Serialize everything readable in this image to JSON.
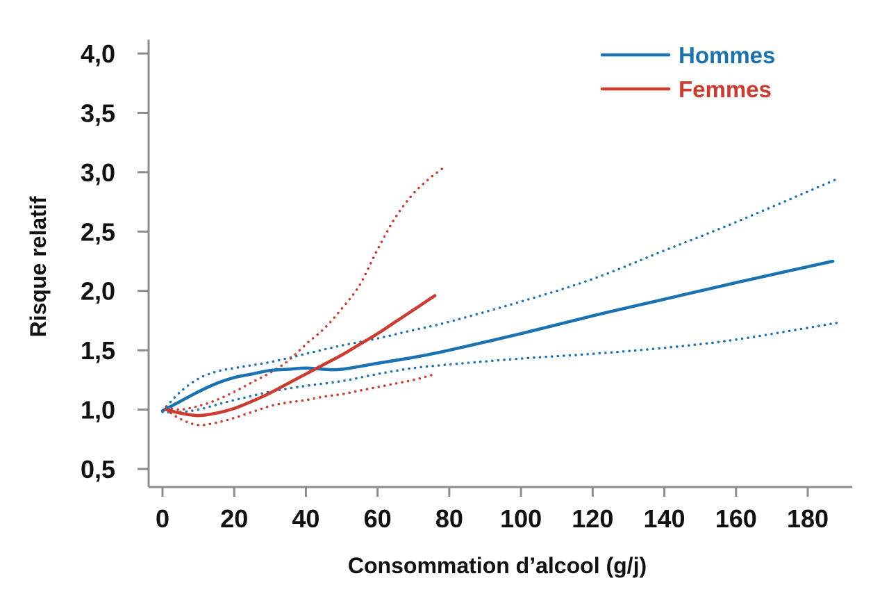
{
  "chart_data": {
    "type": "line",
    "title": "",
    "xlabel": "Consommation d’alcool (g/j)",
    "ylabel": "Risque relatif",
    "xlim": [
      0,
      190
    ],
    "ylim": [
      0.5,
      4.0
    ],
    "x_ticks": [
      "0",
      "20",
      "40",
      "60",
      "80",
      "100",
      "120",
      "140",
      "160",
      "180"
    ],
    "x_tick_values": [
      0,
      20,
      40,
      60,
      80,
      100,
      120,
      140,
      160,
      180
    ],
    "y_ticks": [
      "0,5",
      "1,0",
      "1,5",
      "2,0",
      "2,5",
      "3,0",
      "3,5",
      "4,0"
    ],
    "y_tick_values": [
      0.5,
      1.0,
      1.5,
      2.0,
      2.5,
      3.0,
      3.5,
      4.0
    ],
    "grid": false,
    "legend_position": "top-right",
    "colors": {
      "hommes": "#1a72b0",
      "femmes": "#cc3a30",
      "axis": "#8c8c8c"
    },
    "legend": [
      {
        "label": "Hommes",
        "color": "#1a72b0"
      },
      {
        "label": "Femmes",
        "color": "#cc3a30"
      }
    ],
    "series": [
      {
        "name": "Hommes",
        "group": "hommes",
        "style": "solid",
        "color": "#1a72b0",
        "points": [
          [
            0,
            0.99
          ],
          [
            5,
            1.07
          ],
          [
            10,
            1.15
          ],
          [
            15,
            1.22
          ],
          [
            20,
            1.27
          ],
          [
            25,
            1.3
          ],
          [
            30,
            1.33
          ],
          [
            35,
            1.34
          ],
          [
            40,
            1.35
          ],
          [
            45,
            1.34
          ],
          [
            50,
            1.34
          ],
          [
            60,
            1.39
          ],
          [
            70,
            1.44
          ],
          [
            80,
            1.5
          ],
          [
            100,
            1.64
          ],
          [
            120,
            1.79
          ],
          [
            140,
            1.93
          ],
          [
            160,
            2.07
          ],
          [
            187,
            2.25
          ]
        ]
      },
      {
        "name": "",
        "group": "hommes",
        "style": "dotted",
        "color": "#1a72b0",
        "points": [
          [
            0,
            0.99
          ],
          [
            5,
            1.15
          ],
          [
            10,
            1.26
          ],
          [
            15,
            1.32
          ],
          [
            20,
            1.35
          ],
          [
            30,
            1.4
          ],
          [
            40,
            1.47
          ],
          [
            50,
            1.54
          ],
          [
            60,
            1.6
          ],
          [
            70,
            1.67
          ],
          [
            80,
            1.74
          ],
          [
            100,
            1.91
          ],
          [
            120,
            2.1
          ],
          [
            140,
            2.34
          ],
          [
            160,
            2.58
          ],
          [
            188,
            2.94
          ]
        ]
      },
      {
        "name": "",
        "group": "hommes",
        "style": "dotted",
        "color": "#1a72b0",
        "points": [
          [
            0,
            0.98
          ],
          [
            5,
            0.98
          ],
          [
            10,
            1.0
          ],
          [
            15,
            1.04
          ],
          [
            20,
            1.08
          ],
          [
            30,
            1.15
          ],
          [
            40,
            1.2
          ],
          [
            50,
            1.24
          ],
          [
            60,
            1.3
          ],
          [
            70,
            1.35
          ],
          [
            80,
            1.38
          ],
          [
            100,
            1.43
          ],
          [
            120,
            1.47
          ],
          [
            140,
            1.52
          ],
          [
            160,
            1.59
          ],
          [
            188,
            1.73
          ]
        ]
      },
      {
        "name": "",
        "group": "femmes",
        "style": "solid",
        "color": "#cc3a30",
        "points": [
          [
            1,
            1.0
          ],
          [
            5,
            0.97
          ],
          [
            10,
            0.95
          ],
          [
            15,
            0.97
          ],
          [
            20,
            1.01
          ],
          [
            25,
            1.07
          ],
          [
            30,
            1.14
          ],
          [
            35,
            1.22
          ],
          [
            40,
            1.3
          ],
          [
            45,
            1.38
          ],
          [
            50,
            1.46
          ],
          [
            55,
            1.55
          ],
          [
            60,
            1.64
          ],
          [
            65,
            1.74
          ],
          [
            70,
            1.84
          ],
          [
            76,
            1.96
          ]
        ]
      },
      {
        "name": "",
        "group": "femmes",
        "style": "dotted",
        "color": "#cc3a30",
        "points": [
          [
            1,
            1.02
          ],
          [
            5,
            1.0
          ],
          [
            10,
            1.03
          ],
          [
            15,
            1.08
          ],
          [
            20,
            1.15
          ],
          [
            25,
            1.23
          ],
          [
            30,
            1.31
          ],
          [
            35,
            1.41
          ],
          [
            40,
            1.55
          ],
          [
            45,
            1.68
          ],
          [
            50,
            1.85
          ],
          [
            55,
            2.05
          ],
          [
            60,
            2.35
          ],
          [
            65,
            2.62
          ],
          [
            70,
            2.82
          ],
          [
            75,
            2.96
          ],
          [
            79,
            3.05
          ]
        ]
      },
      {
        "name": "",
        "group": "femmes",
        "style": "dotted",
        "color": "#cc3a30",
        "points": [
          [
            1,
            1.0
          ],
          [
            5,
            0.92
          ],
          [
            10,
            0.87
          ],
          [
            15,
            0.89
          ],
          [
            20,
            0.93
          ],
          [
            25,
            0.98
          ],
          [
            30,
            1.03
          ],
          [
            35,
            1.06
          ],
          [
            40,
            1.08
          ],
          [
            45,
            1.11
          ],
          [
            50,
            1.13
          ],
          [
            55,
            1.16
          ],
          [
            60,
            1.19
          ],
          [
            65,
            1.22
          ],
          [
            70,
            1.25
          ],
          [
            75,
            1.29
          ]
        ]
      }
    ]
  }
}
